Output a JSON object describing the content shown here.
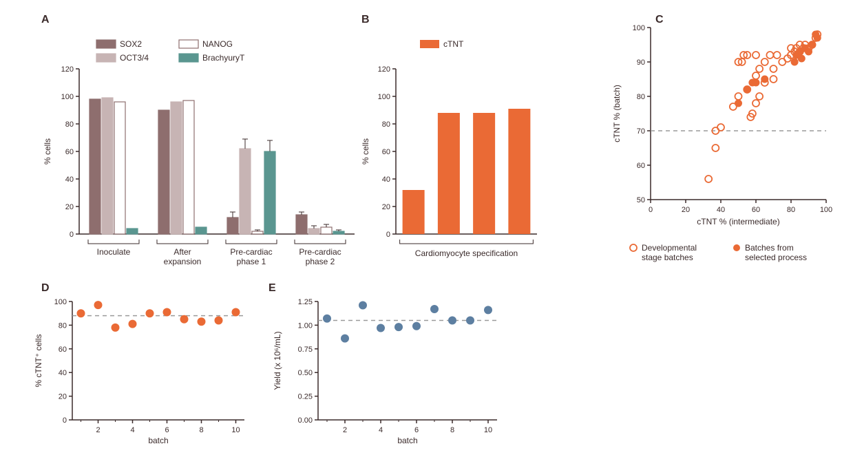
{
  "colors": {
    "sox2": "#8e6e6e",
    "oct34": "#c7b4b4",
    "nanog_stroke": "#8e6e6e",
    "nanog_fill": "#ffffff",
    "brachyury": "#5a9690",
    "ctnt": "#ea6a35",
    "scatter_open": "#ea6a35",
    "scatter_filled": "#ea6a35",
    "yield": "#5d7fa1",
    "axis": "#3a2a2a",
    "dash": "#9a9a9a",
    "text": "#3a2a2a"
  },
  "panelA": {
    "label": "A",
    "ylabel": "% cells",
    "ylim": [
      0,
      120
    ],
    "ytick_step": 20,
    "categories": [
      "Inoculate",
      "After\nexpansion",
      "Pre-cardiac\nphase 1",
      "Pre-cardiac\nphase 2"
    ],
    "series": [
      {
        "name": "SOX2",
        "color": "#8e6e6e",
        "values": [
          98,
          90,
          12,
          14
        ],
        "err": [
          0,
          0,
          4,
          2
        ]
      },
      {
        "name": "OCT3/4",
        "color": "#c7b4b4",
        "values": [
          99,
          96,
          62,
          4
        ],
        "err": [
          0,
          0,
          7,
          2
        ]
      },
      {
        "name": "NANOG",
        "stroke": "#8e6e6e",
        "fill": "#ffffff",
        "values": [
          96,
          97,
          2,
          5
        ],
        "err": [
          0,
          0,
          1,
          2
        ]
      },
      {
        "name": "BrachyuryT",
        "color": "#5a9690",
        "values": [
          4,
          5,
          60,
          2
        ],
        "err": [
          0,
          0,
          8,
          1
        ]
      }
    ],
    "legend": [
      {
        "label": "SOX2",
        "swatch": "sox2"
      },
      {
        "label": "OCT3/4",
        "swatch": "oct34"
      },
      {
        "label": "NANOG",
        "swatch": "nanog"
      },
      {
        "label": "BrachyuryT",
        "swatch": "brachyury"
      }
    ]
  },
  "panelB": {
    "label": "B",
    "ylabel": "% cells",
    "ylim": [
      0,
      120
    ],
    "ytick_step": 20,
    "xlabel": "Cardiomyocyte specification",
    "legend_label": "cTNT",
    "values": [
      32,
      88,
      88,
      91
    ],
    "color": "#ea6a35"
  },
  "panelC": {
    "label": "C",
    "xlabel": "cTNT % (intermediate)",
    "ylabel": "cTNT % (batch)",
    "xlim": [
      0,
      100
    ],
    "ylim": [
      50,
      100
    ],
    "xtick_step": 20,
    "ytick_step": 10,
    "href_y": 70,
    "open_points": [
      [
        33,
        56
      ],
      [
        37,
        65
      ],
      [
        37,
        70
      ],
      [
        40,
        71
      ],
      [
        47,
        77
      ],
      [
        50,
        80
      ],
      [
        50,
        90
      ],
      [
        52,
        90
      ],
      [
        53,
        92
      ],
      [
        55,
        82
      ],
      [
        55,
        92
      ],
      [
        57,
        74
      ],
      [
        58,
        75
      ],
      [
        60,
        78
      ],
      [
        60,
        86
      ],
      [
        60,
        92
      ],
      [
        62,
        80
      ],
      [
        62,
        88
      ],
      [
        65,
        84
      ],
      [
        65,
        90
      ],
      [
        68,
        92
      ],
      [
        70,
        85
      ],
      [
        70,
        88
      ],
      [
        72,
        92
      ],
      [
        75,
        90
      ],
      [
        78,
        91
      ],
      [
        80,
        92
      ],
      [
        80,
        94
      ],
      [
        82,
        93
      ],
      [
        83,
        94
      ],
      [
        85,
        93
      ],
      [
        85,
        95
      ],
      [
        87,
        94
      ],
      [
        88,
        95
      ],
      [
        90,
        94
      ],
      [
        92,
        95
      ],
      [
        94,
        97
      ],
      [
        95,
        98
      ]
    ],
    "filled_points": [
      [
        50,
        78
      ],
      [
        55,
        82
      ],
      [
        58,
        84
      ],
      [
        60,
        84
      ],
      [
        65,
        85
      ],
      [
        82,
        90
      ],
      [
        83,
        92
      ],
      [
        85,
        93
      ],
      [
        86,
        91
      ],
      [
        88,
        94
      ],
      [
        90,
        93
      ],
      [
        92,
        95
      ],
      [
        95,
        97
      ],
      [
        94,
        98
      ]
    ],
    "legend_open": "Developmental\nstage batches",
    "legend_filled": "Batches from\nselected process"
  },
  "panelD": {
    "label": "D",
    "ylabel": "% cTNT⁺ cells",
    "xlabel": "batch",
    "ylim": [
      0,
      100
    ],
    "ytick_step": 20,
    "xlim": [
      0.5,
      10.5
    ],
    "xtick_step": 2,
    "href_y": 88,
    "color": "#ea6a35",
    "points": [
      [
        1,
        90
      ],
      [
        2,
        97
      ],
      [
        3,
        78
      ],
      [
        4,
        81
      ],
      [
        5,
        90
      ],
      [
        6,
        91
      ],
      [
        7,
        85
      ],
      [
        8,
        83
      ],
      [
        9,
        84
      ],
      [
        10,
        91
      ]
    ]
  },
  "panelE": {
    "label": "E",
    "ylabel": "Yield (x 10⁶/mL)",
    "xlabel": "batch",
    "ylim": [
      0.0,
      1.25
    ],
    "ytick_step": 0.25,
    "xlim": [
      0.5,
      10.5
    ],
    "xtick_step": 2,
    "href_y": 1.05,
    "color": "#5d7fa1",
    "points": [
      [
        1,
        1.07
      ],
      [
        2,
        0.86
      ],
      [
        3,
        1.21
      ],
      [
        4,
        0.97
      ],
      [
        5,
        0.98
      ],
      [
        6,
        0.99
      ],
      [
        7,
        1.17
      ],
      [
        8,
        1.05
      ],
      [
        9,
        1.05
      ],
      [
        10,
        1.16
      ]
    ]
  }
}
